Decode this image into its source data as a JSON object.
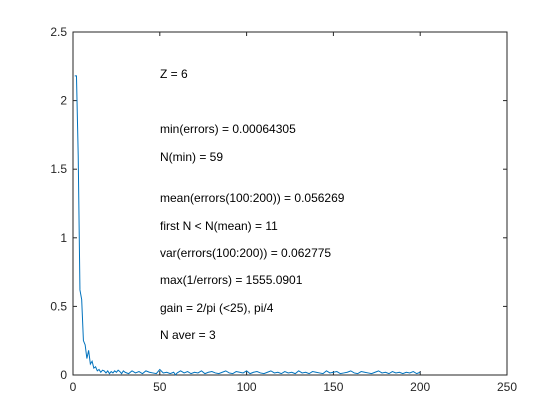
{
  "chart_data": {
    "type": "line",
    "title": "",
    "xlabel": "",
    "ylabel": "",
    "xlim": [
      0,
      250
    ],
    "ylim": [
      0,
      2.5
    ],
    "xticks": [
      "0",
      "50",
      "100",
      "150",
      "200",
      "250"
    ],
    "yticks": [
      "0",
      "0.5",
      "1",
      "1.5",
      "2",
      "2.5"
    ],
    "grid": false,
    "line_color": "#0072BD",
    "series": [
      {
        "x": [
          1,
          2,
          3,
          4,
          5,
          6,
          7,
          8,
          9,
          10,
          11,
          12,
          13,
          14,
          15,
          16,
          17,
          18,
          19,
          20,
          21,
          22,
          23,
          24,
          25,
          26,
          27,
          28,
          29,
          30,
          32,
          34,
          36,
          38,
          40,
          42,
          44,
          46,
          48,
          50,
          52,
          54,
          56,
          58,
          59,
          60,
          62,
          64,
          66,
          68,
          70,
          72,
          74,
          76,
          78,
          80,
          82,
          84,
          86,
          88,
          90,
          92,
          94,
          96,
          98,
          100,
          102,
          104,
          106,
          108,
          110,
          112,
          114,
          116,
          118,
          120,
          122,
          124,
          126,
          128,
          130,
          132,
          134,
          136,
          138,
          140,
          142,
          144,
          146,
          148,
          150,
          152,
          154,
          156,
          158,
          160,
          162,
          164,
          166,
          168,
          170,
          172,
          174,
          176,
          178,
          180,
          182,
          184,
          186,
          188,
          190,
          192,
          194,
          196,
          198,
          200
        ],
        "values": [
          2.18,
          2.18,
          1.6,
          0.62,
          0.55,
          0.25,
          0.22,
          0.12,
          0.18,
          0.08,
          0.1,
          0.05,
          0.06,
          0.03,
          0.04,
          0.02,
          0.035,
          0.03,
          0.015,
          0.03,
          0.01,
          0.025,
          0.015,
          0.03,
          0.02,
          0.035,
          0.025,
          0.01,
          0.03,
          0.02,
          0.01,
          0.03,
          0.015,
          0.025,
          0.01,
          0.03,
          0.02,
          0.015,
          0.01,
          0.04,
          0.015,
          0.02,
          0.01,
          0.02,
          0.001,
          0.015,
          0.03,
          0.015,
          0.025,
          0.01,
          0.02,
          0.015,
          0.03,
          0.01,
          0.02,
          0.025,
          0.015,
          0.01,
          0.02,
          0.03,
          0.015,
          0.01,
          0.025,
          0.02,
          0.015,
          0.03,
          0.01,
          0.02,
          0.025,
          0.015,
          0.01,
          0.02,
          0.03,
          0.015,
          0.02,
          0.01,
          0.025,
          0.015,
          0.02,
          0.01,
          0.03,
          0.015,
          0.02,
          0.01,
          0.025,
          0.02,
          0.015,
          0.01,
          0.03,
          0.015,
          0.02,
          0.025,
          0.01,
          0.015,
          0.02,
          0.03,
          0.015,
          0.01,
          0.025,
          0.02,
          0.015,
          0.01,
          0.02,
          0.03,
          0.015,
          0.02,
          0.01,
          0.025,
          0.015,
          0.02,
          0.01,
          0.02,
          0.015,
          0.025,
          0.01,
          0.02
        ]
      }
    ],
    "annotations": [
      "Z = 6",
      "min(errors) = 0.00064305",
      "N(min) = 59",
      "mean(errors(100:200)) = 0.056269",
      "first N < N(mean) = 11",
      "var(errors(100:200)) = 0.062775",
      "max(1/errors) = 1555.0901",
      "gain = 2/pi (<25), pi/4",
      "N aver = 3"
    ]
  }
}
